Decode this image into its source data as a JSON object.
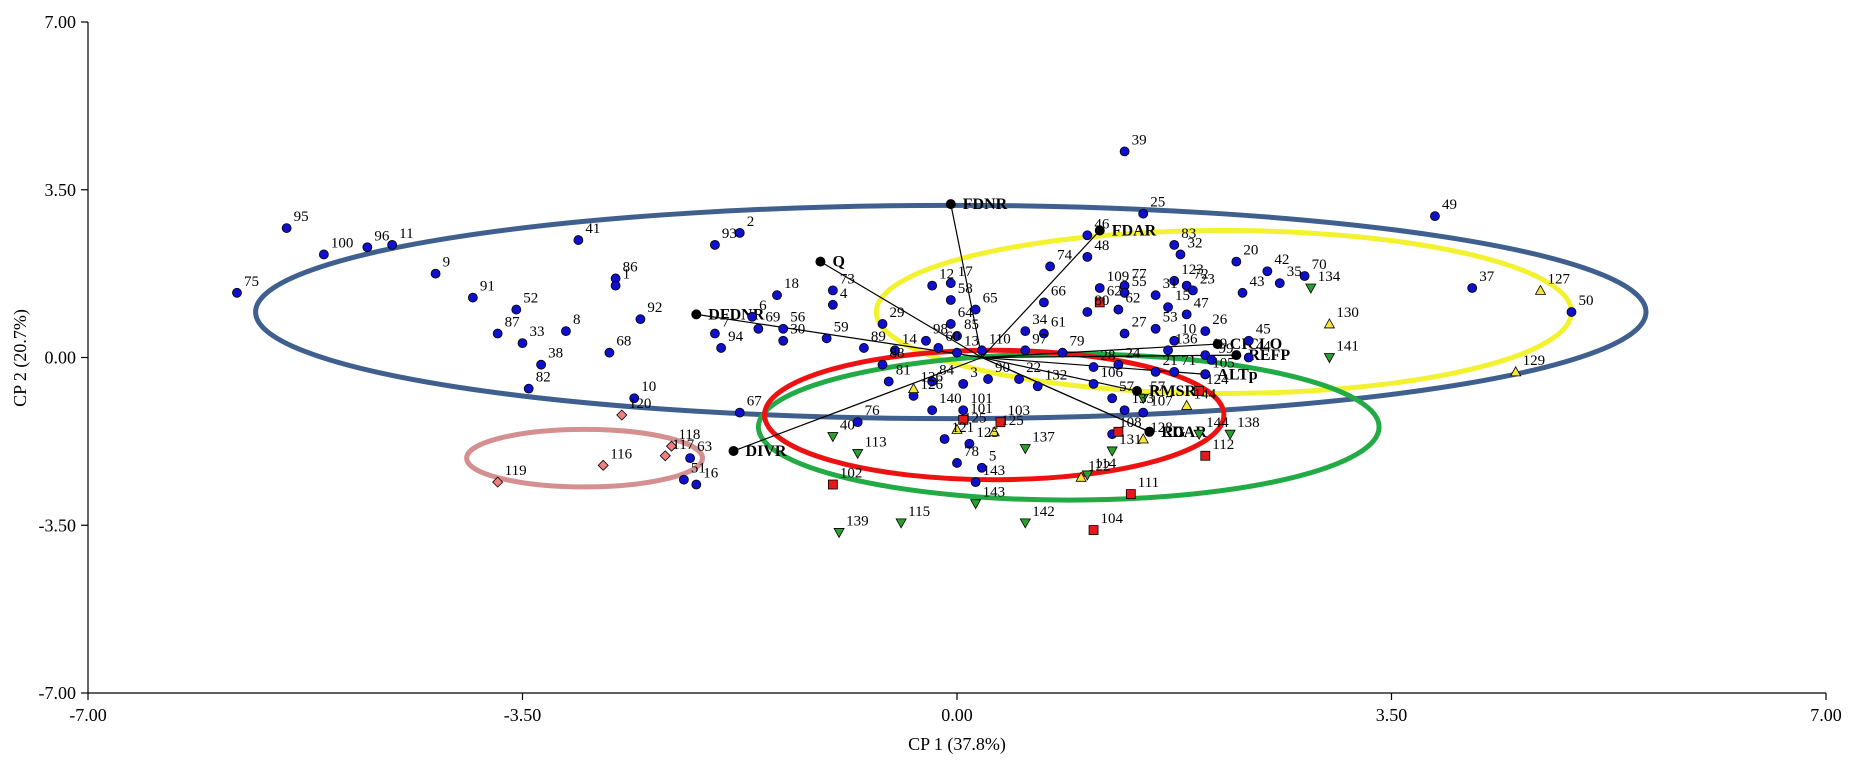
{
  "chart_data": {
    "type": "scatter",
    "title": "",
    "xlabel": "CP 1 (37.8%)",
    "ylabel": "CP 2 (20.7%)",
    "xlim": [
      -7.0,
      7.0
    ],
    "ylim": [
      -7.0,
      7.0
    ],
    "x_ticks": [
      -7.0,
      -3.5,
      0.0,
      3.5,
      7.0
    ],
    "x_tick_labels": [
      "-7.00",
      "-3.50",
      "0.00",
      "3.50",
      "7.00"
    ],
    "y_ticks": [
      -7.0,
      -3.5,
      0.0,
      3.5,
      7.0
    ],
    "y_tick_labels": [
      "-7.00",
      "-3.50",
      "0.00",
      "3.50",
      "7.00"
    ],
    "grid": false,
    "colors": {
      "blue_group": "#1010cc",
      "red_group": "#e31a1c",
      "green_group": "#2ca02c",
      "yellow_group": "#f5e63a",
      "pink_group": "#f08080",
      "ellipse_blue": "#3f5f8f",
      "ellipse_red": "#ee1111",
      "ellipse_green": "#22aa44",
      "ellipse_yellow": "#f2f230",
      "ellipse_pink": "#d49090",
      "vector": "#000000"
    },
    "variables": [
      {
        "label": "FDNR",
        "x": -0.05,
        "y": 3.2
      },
      {
        "label": "FDAR",
        "x": 1.15,
        "y": 2.65
      },
      {
        "label": "Q",
        "x": -1.1,
        "y": 2.0
      },
      {
        "label": "DFDNR",
        "x": -2.1,
        "y": 0.9
      },
      {
        "label": "DIVR",
        "x": -1.8,
        "y": -1.95
      },
      {
        "label": "CICLO",
        "x": 2.1,
        "y": 0.28
      },
      {
        "label": "REFP",
        "x": 2.25,
        "y": 0.05
      },
      {
        "label": "ALTp",
        "x": 2.0,
        "y": -0.35
      },
      {
        "label": "RMSR",
        "x": 1.45,
        "y": -0.7
      },
      {
        "label": "LDAR",
        "x": 1.55,
        "y": -1.55
      },
      {
        "label": "RG",
        "x": 1.55,
        "y": -1.55
      }
    ],
    "series": [
      {
        "marker": "circle",
        "color": "blue_group",
        "points": [
          {
            "label": "95",
            "x": -5.4,
            "y": 2.7
          },
          {
            "label": "75",
            "x": -5.8,
            "y": 1.35
          },
          {
            "label": "100",
            "x": -5.1,
            "y": 2.15
          },
          {
            "label": "96",
            "x": -4.75,
            "y": 2.3
          },
          {
            "label": "11",
            "x": -4.55,
            "y": 2.35
          },
          {
            "label": "9",
            "x": -4.2,
            "y": 1.75
          },
          {
            "label": "91",
            "x": -3.9,
            "y": 1.25
          },
          {
            "label": "52",
            "x": -3.55,
            "y": 1.0
          },
          {
            "label": "87",
            "x": -3.7,
            "y": 0.5
          },
          {
            "label": "8",
            "x": -3.15,
            "y": 0.55
          },
          {
            "label": "33",
            "x": -3.5,
            "y": 0.3
          },
          {
            "label": "38",
            "x": -3.35,
            "y": -0.15
          },
          {
            "label": "82",
            "x": -3.45,
            "y": -0.65
          },
          {
            "label": "41",
            "x": -3.05,
            "y": 2.45
          },
          {
            "label": "86",
            "x": -2.75,
            "y": 1.65
          },
          {
            "label": "1",
            "x": -2.75,
            "y": 1.5
          },
          {
            "label": "92",
            "x": -2.55,
            "y": 0.8
          },
          {
            "label": "68",
            "x": -2.8,
            "y": 0.1
          },
          {
            "label": "10",
            "x": -2.6,
            "y": -0.85
          },
          {
            "label": "93",
            "x": -1.95,
            "y": 2.35
          },
          {
            "label": "2",
            "x": -1.75,
            "y": 2.6
          },
          {
            "label": "18",
            "x": -1.45,
            "y": 1.3
          },
          {
            "label": "6",
            "x": -1.65,
            "y": 0.85
          },
          {
            "label": "7",
            "x": -1.95,
            "y": 0.5
          },
          {
            "label": "69",
            "x": -1.6,
            "y": 0.6
          },
          {
            "label": "94",
            "x": -1.9,
            "y": 0.2
          },
          {
            "label": "56",
            "x": -1.4,
            "y": 0.6
          },
          {
            "label": "30",
            "x": -1.4,
            "y": 0.35
          },
          {
            "label": "67",
            "x": -1.75,
            "y": -1.15
          },
          {
            "label": "63",
            "x": -2.15,
            "y": -2.1
          },
          {
            "label": "51",
            "x": -2.2,
            "y": -2.55
          },
          {
            "label": "16",
            "x": -2.1,
            "y": -2.65
          },
          {
            "label": "73",
            "x": -1.0,
            "y": 1.4
          },
          {
            "label": "4",
            "x": -1.0,
            "y": 1.1
          },
          {
            "label": "59",
            "x": -1.05,
            "y": 0.4
          },
          {
            "label": "29",
            "x": -0.6,
            "y": 0.7
          },
          {
            "label": "89",
            "x": -0.75,
            "y": 0.2
          },
          {
            "label": "14",
            "x": -0.5,
            "y": 0.15
          },
          {
            "label": "88",
            "x": -0.6,
            "y": -0.15
          },
          {
            "label": "81",
            "x": -0.55,
            "y": -0.5
          },
          {
            "label": "126",
            "x": -0.35,
            "y": -0.8
          },
          {
            "label": "140",
            "x": -0.2,
            "y": -1.1
          },
          {
            "label": "76",
            "x": -0.8,
            "y": -1.35
          },
          {
            "label": "121",
            "x": -0.1,
            "y": -1.7
          },
          {
            "label": "98",
            "x": -0.25,
            "y": 0.35
          },
          {
            "label": "60",
            "x": -0.15,
            "y": 0.2
          },
          {
            "label": "13",
            "x": 0.0,
            "y": 0.1
          },
          {
            "label": "84",
            "x": -0.2,
            "y": -0.5
          },
          {
            "label": "3",
            "x": 0.05,
            "y": -0.55
          },
          {
            "label": "101",
            "x": 0.05,
            "y": -1.1
          },
          {
            "label": "125",
            "x": 0.1,
            "y": -1.8
          },
          {
            "label": "78",
            "x": 0.0,
            "y": -2.2
          },
          {
            "label": "5",
            "x": 0.2,
            "y": -2.3
          },
          {
            "label": "143",
            "x": 0.15,
            "y": -2.6
          },
          {
            "label": "12",
            "x": -0.2,
            "y": 1.5
          },
          {
            "label": "17",
            "x": -0.05,
            "y": 1.55
          },
          {
            "label": "58",
            "x": -0.05,
            "y": 1.2
          },
          {
            "label": "64",
            "x": -0.05,
            "y": 0.7
          },
          {
            "label": "85",
            "x": 0.0,
            "y": 0.45
          },
          {
            "label": "65",
            "x": 0.15,
            "y": 1.0
          },
          {
            "label": "110",
            "x": 0.2,
            "y": 0.15
          },
          {
            "label": "97",
            "x": 0.55,
            "y": 0.15
          },
          {
            "label": "90",
            "x": 0.25,
            "y": -0.45
          },
          {
            "label": "22",
            "x": 0.5,
            "y": -0.45
          },
          {
            "label": "132",
            "x": 0.65,
            "y": -0.6
          },
          {
            "label": "34",
            "x": 0.55,
            "y": 0.55
          },
          {
            "label": "61",
            "x": 0.7,
            "y": 0.5
          },
          {
            "label": "66",
            "x": 0.7,
            "y": 1.15
          },
          {
            "label": "74",
            "x": 0.75,
            "y": 1.9
          },
          {
            "label": "48",
            "x": 1.05,
            "y": 2.1
          },
          {
            "label": "46",
            "x": 1.05,
            "y": 2.55
          },
          {
            "label": "80",
            "x": 1.05,
            "y": 0.95
          },
          {
            "label": "79",
            "x": 0.85,
            "y": 0.1
          },
          {
            "label": "106",
            "x": 1.1,
            "y": -0.55
          },
          {
            "label": "28",
            "x": 1.1,
            "y": -0.2
          },
          {
            "label": "24",
            "x": 1.3,
            "y": -0.15
          },
          {
            "label": "57",
            "x": 1.25,
            "y": -0.85
          },
          {
            "label": "133",
            "x": 1.35,
            "y": -1.1
          },
          {
            "label": "108",
            "x": 1.25,
            "y": -1.6
          },
          {
            "label": "39",
            "x": 1.35,
            "y": 4.3
          },
          {
            "label": "25",
            "x": 1.5,
            "y": 3.0
          },
          {
            "label": "77",
            "x": 1.35,
            "y": 1.5
          },
          {
            "label": "109",
            "x": 1.15,
            "y": 1.45
          },
          {
            "label": "55",
            "x": 1.35,
            "y": 1.35
          },
          {
            "label": "62",
            "x": 1.3,
            "y": 1.0
          },
          {
            "label": "27",
            "x": 1.35,
            "y": 0.5
          },
          {
            "label": "83",
            "x": 1.75,
            "y": 2.35
          },
          {
            "label": "32",
            "x": 1.8,
            "y": 2.15
          },
          {
            "label": "123",
            "x": 1.75,
            "y": 1.6
          },
          {
            "label": "31",
            "x": 1.6,
            "y": 1.3
          },
          {
            "label": "72",
            "x": 1.85,
            "y": 1.5
          },
          {
            "label": "23",
            "x": 1.9,
            "y": 1.4
          },
          {
            "label": "15",
            "x": 1.7,
            "y": 1.05
          },
          {
            "label": "47",
            "x": 1.85,
            "y": 0.9
          },
          {
            "label": "53",
            "x": 1.6,
            "y": 0.6
          },
          {
            "label": "26",
            "x": 2.0,
            "y": 0.55
          },
          {
            "label": "136",
            "x": 1.7,
            "y": 0.15
          },
          {
            "label": "10b",
            "x": 1.75,
            "y": 0.35
          },
          {
            "label": "19",
            "x": 2.0,
            "y": 0.05
          },
          {
            "label": "99",
            "x": 2.05,
            "y": -0.05
          },
          {
            "label": "21",
            "x": 1.6,
            "y": -0.3
          },
          {
            "label": "71",
            "x": 1.75,
            "y": -0.3
          },
          {
            "label": "105",
            "x": 2.0,
            "y": -0.35
          },
          {
            "label": "107",
            "x": 1.5,
            "y": -1.15
          },
          {
            "label": "20",
            "x": 2.25,
            "y": 2.0
          },
          {
            "label": "42",
            "x": 2.5,
            "y": 1.8
          },
          {
            "label": "43",
            "x": 2.3,
            "y": 1.35
          },
          {
            "label": "35",
            "x": 2.6,
            "y": 1.55
          },
          {
            "label": "70",
            "x": 2.8,
            "y": 1.7
          },
          {
            "label": "45",
            "x": 2.35,
            "y": 0.35
          },
          {
            "label": "44",
            "x": 2.35,
            "y": 0.0
          },
          {
            "label": "49",
            "x": 3.85,
            "y": 2.95
          },
          {
            "label": "37",
            "x": 4.15,
            "y": 1.45
          },
          {
            "label": "50",
            "x": 4.95,
            "y": 0.95
          }
        ]
      },
      {
        "marker": "square",
        "color": "red_group",
        "points": [
          {
            "label": "102",
            "x": -1.0,
            "y": -2.65
          },
          {
            "label": "103",
            "x": 0.35,
            "y": -1.35
          },
          {
            "label": "101b",
            "x": 0.05,
            "y": -1.3
          },
          {
            "label": "62b",
            "x": 1.15,
            "y": 1.15
          },
          {
            "label": "104",
            "x": 1.1,
            "y": -3.6
          },
          {
            "label": "111",
            "x": 1.4,
            "y": -2.85
          },
          {
            "label": "112",
            "x": 2.0,
            "y": -2.05
          },
          {
            "label": "124",
            "x": 1.95,
            "y": -0.7
          },
          {
            "label": "RGsq",
            "x": 1.3,
            "y": -1.55
          }
        ]
      },
      {
        "marker": "triangle-down",
        "color": "green_group",
        "points": [
          {
            "label": "40",
            "x": -1.0,
            "y": -1.65
          },
          {
            "label": "113",
            "x": -0.8,
            "y": -2.0
          },
          {
            "label": "139",
            "x": -0.95,
            "y": -3.65
          },
          {
            "label": "115",
            "x": -0.45,
            "y": -3.45
          },
          {
            "label": "137",
            "x": 0.55,
            "y": -1.9
          },
          {
            "label": "142",
            "x": 0.55,
            "y": -3.45
          },
          {
            "label": "143b",
            "x": 0.15,
            "y": -3.05
          },
          {
            "label": "114",
            "x": 1.05,
            "y": -2.45
          },
          {
            "label": "131",
            "x": 1.25,
            "y": -1.95
          },
          {
            "label": "144",
            "x": 1.95,
            "y": -1.6
          },
          {
            "label": "138",
            "x": 2.2,
            "y": -1.6
          },
          {
            "label": "134",
            "x": 2.85,
            "y": 1.45
          },
          {
            "label": "141",
            "x": 3.0,
            "y": 0.0
          },
          {
            "label": "57b",
            "x": 1.5,
            "y": -0.85
          }
        ]
      },
      {
        "marker": "triangle-up",
        "color": "yellow_group",
        "points": [
          {
            "label": "126b",
            "x": -0.35,
            "y": -0.65
          },
          {
            "label": "125b",
            "x": 0.0,
            "y": -1.5
          },
          {
            "label": "122",
            "x": 1.0,
            "y": -2.5
          },
          {
            "label": "128",
            "x": 1.5,
            "y": -1.7
          },
          {
            "label": "144b",
            "x": 1.85,
            "y": -1.0
          },
          {
            "label": "130",
            "x": 3.0,
            "y": 0.7
          },
          {
            "label": "127",
            "x": 4.7,
            "y": 1.4
          },
          {
            "label": "129",
            "x": 4.5,
            "y": -0.3
          },
          {
            "label": "125c",
            "x": 0.3,
            "y": -1.55
          }
        ]
      },
      {
        "marker": "diamond",
        "color": "pink_group",
        "points": [
          {
            "label": "120",
            "x": -2.7,
            "y": -1.2
          },
          {
            "label": "118",
            "x": -2.3,
            "y": -1.85
          },
          {
            "label": "117",
            "x": -2.35,
            "y": -2.05
          },
          {
            "label": "116",
            "x": -2.85,
            "y": -2.25
          },
          {
            "label": "119",
            "x": -3.7,
            "y": -2.6
          }
        ]
      }
    ],
    "ellipses": [
      {
        "color": "ellipse_blue",
        "cx": -0.05,
        "cy": 0.95,
        "rx": 5.6,
        "ry": 4.45
      },
      {
        "color": "ellipse_yellow",
        "cx": 2.15,
        "cy": 0.95,
        "rx": 2.8,
        "ry": 3.4
      },
      {
        "color": "ellipse_green",
        "cx": 0.9,
        "cy": -1.45,
        "rx": 2.5,
        "ry": 3.05
      },
      {
        "color": "ellipse_red",
        "cx": 0.3,
        "cy": -1.2,
        "rx": 1.85,
        "ry": 2.7
      },
      {
        "color": "ellipse_pink",
        "cx": -3.0,
        "cy": -2.1,
        "rx": 0.95,
        "ry": 1.2
      }
    ]
  }
}
